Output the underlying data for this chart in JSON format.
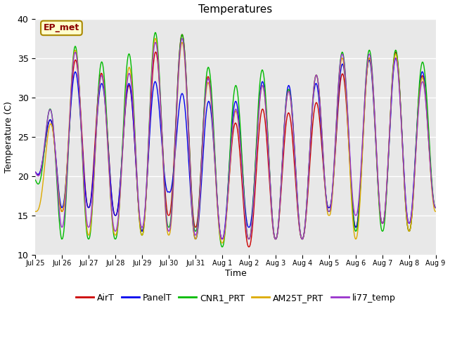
{
  "title": "Temperatures",
  "xlabel": "Time",
  "ylabel": "Temperature (C)",
  "ylim": [
    10,
    40
  ],
  "yticks": [
    10,
    15,
    20,
    25,
    30,
    35,
    40
  ],
  "annotation_text": "EP_met",
  "bg_color": "#e8e8e8",
  "fig_color": "#ffffff",
  "x_tick_labels": [
    "Jul 25",
    "Jul 26",
    "Jul 27",
    "Jul 28",
    "Jul 29",
    "Jul 30",
    "Jul 31",
    "Aug 1",
    "Aug 2",
    "Aug 3",
    "Aug 4",
    "Aug 5",
    "Aug 6",
    "Aug 7",
    "Aug 8",
    "Aug 9"
  ],
  "series": {
    "AirT": {
      "color": "#cc0000",
      "lw": 1.0
    },
    "PanelT": {
      "color": "#0000ee",
      "lw": 1.0
    },
    "CNR1_PRT": {
      "color": "#00bb00",
      "lw": 1.0
    },
    "AM25T_PRT": {
      "color": "#ddaa00",
      "lw": 1.0
    },
    "li77_temp": {
      "color": "#9933cc",
      "lw": 1.0
    }
  },
  "air_peaks": [
    20.5,
    33.0,
    36.5,
    29.5,
    33.5,
    38.0,
    38.0,
    27.0,
    26.5,
    30.5,
    25.5,
    33.0,
    33.0,
    37.0,
    34.5,
    31.0,
    28.0
  ],
  "air_troughs": [
    20.5,
    15.5,
    16.0,
    15.0,
    13.0,
    15.0,
    13.5,
    12.0,
    11.0,
    12.0,
    12.0,
    16.0,
    13.5,
    14.0,
    13.0,
    16.0,
    17.0
  ],
  "panel_peaks": [
    20.5,
    33.0,
    33.5,
    30.0,
    33.5,
    30.5,
    30.5,
    28.5,
    30.5,
    33.5,
    29.5,
    34.0,
    34.5,
    35.0,
    35.0,
    31.5,
    31.5
  ],
  "panel_troughs": [
    20.5,
    16.0,
    16.0,
    15.0,
    13.0,
    18.0,
    12.0,
    12.0,
    13.5,
    12.0,
    12.0,
    16.0,
    13.5,
    14.0,
    14.0,
    16.0,
    17.0
  ],
  "cnr1_peaks": [
    19.5,
    36.5,
    36.5,
    32.5,
    38.5,
    38.0,
    38.0,
    29.5,
    33.5,
    33.5,
    28.5,
    37.0,
    34.5,
    37.5,
    34.5,
    34.5,
    31.0
  ],
  "cnr1_troughs": [
    19.5,
    12.0,
    12.0,
    12.0,
    12.5,
    13.5,
    13.0,
    11.0,
    12.0,
    12.0,
    12.0,
    15.5,
    13.0,
    13.0,
    13.0,
    16.0,
    16.0
  ],
  "am25_peaks": [
    15.5,
    36.0,
    36.0,
    29.5,
    38.0,
    37.0,
    37.0,
    26.5,
    30.0,
    33.0,
    28.5,
    37.0,
    33.0,
    37.0,
    34.0,
    31.0,
    30.5
  ],
  "am25_troughs": [
    15.5,
    15.5,
    12.5,
    12.5,
    12.5,
    12.5,
    12.0,
    11.5,
    12.0,
    12.0,
    12.0,
    15.0,
    12.0,
    14.0,
    13.0,
    15.5,
    17.5
  ],
  "li77_peaks": [
    20.5,
    35.5,
    36.0,
    29.5,
    36.5,
    37.5,
    37.5,
    27.0,
    30.0,
    33.0,
    28.5,
    37.0,
    34.0,
    37.0,
    33.0,
    31.0,
    30.0
  ],
  "li77_troughs": [
    20.5,
    13.5,
    13.5,
    13.0,
    13.5,
    13.0,
    12.5,
    12.0,
    12.0,
    12.0,
    12.0,
    15.5,
    15.0,
    14.0,
    14.0,
    16.0,
    17.5
  ]
}
